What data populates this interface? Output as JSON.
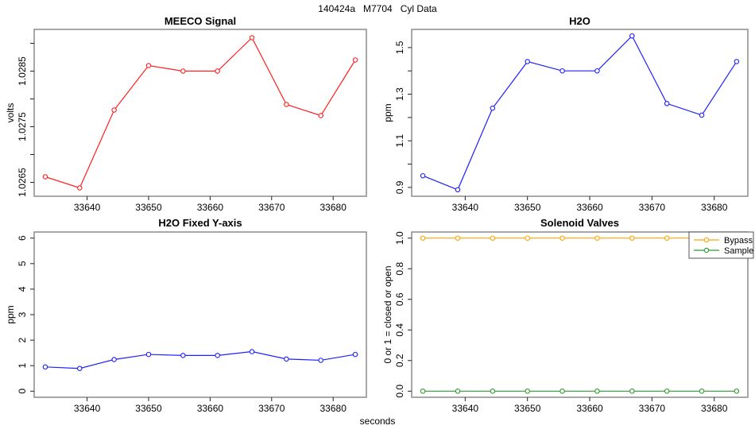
{
  "header": {
    "title": "140424a   M7704   Cyl Data"
  },
  "footer": {
    "xlabel": "seconds"
  },
  "colors": {
    "box": "#8c8c8c",
    "tick": "#222222",
    "red": "#ff2020",
    "blue": "#2020ff",
    "orange": "#ffa500",
    "green": "#2e9b2e",
    "legend_border": "#555555"
  },
  "chart_data": [
    {
      "type": "line",
      "title": "MEECO Signal",
      "ylabel": "volts",
      "x": [
        33633.2,
        33638.8,
        33644.4,
        33650.0,
        33655.6,
        33661.2,
        33666.8,
        33672.4,
        33678.0,
        33683.6
      ],
      "series": [
        {
          "name": "MEECO Signal",
          "color": "#ff2020",
          "values": [
            1.0266,
            1.0264,
            1.0278,
            1.0286,
            1.0285,
            1.0285,
            1.0291,
            1.0279,
            1.0277,
            1.0287
          ]
        }
      ],
      "xlim": [
        33631.4,
        33685.4
      ],
      "ylim": [
        1.02625,
        1.02925
      ],
      "xticks": {
        "values": [
          33640,
          33650,
          33660,
          33670,
          33680
        ],
        "labels": [
          "33640",
          "33650",
          "33660",
          "33670",
          "33680"
        ]
      },
      "yticks": {
        "values": [
          1.0265,
          1.027,
          1.0275,
          1.028,
          1.0285,
          1.029
        ],
        "labels": [
          "1.0265",
          "",
          "1.0275",
          "",
          "1.0285",
          ""
        ]
      },
      "grid": false
    },
    {
      "type": "line",
      "title": "H2O",
      "ylabel": "ppm",
      "x": [
        33633.2,
        33638.8,
        33644.4,
        33650.0,
        33655.6,
        33661.2,
        33666.8,
        33672.4,
        33678.0,
        33683.6
      ],
      "series": [
        {
          "name": "H2O",
          "color": "#2020ff",
          "values": [
            0.95,
            0.89,
            1.24,
            1.44,
            1.4,
            1.4,
            1.55,
            1.26,
            1.21,
            1.44
          ]
        }
      ],
      "xlim": [
        33631.4,
        33685.4
      ],
      "ylim": [
        0.862,
        1.578
      ],
      "xticks": {
        "values": [
          33640,
          33650,
          33660,
          33670,
          33680
        ],
        "labels": [
          "33640",
          "33650",
          "33660",
          "33670",
          "33680"
        ]
      },
      "yticks": {
        "values": [
          0.9,
          1.0,
          1.1,
          1.2,
          1.3,
          1.4,
          1.5
        ],
        "labels": [
          "0.9",
          "",
          "1.1",
          "",
          "1.3",
          "",
          "1.5"
        ]
      },
      "grid": false
    },
    {
      "type": "line",
      "title": "H2O Fixed Y-axis",
      "ylabel": "ppm",
      "x": [
        33633.2,
        33638.8,
        33644.4,
        33650.0,
        33655.6,
        33661.2,
        33666.8,
        33672.4,
        33678.0,
        33683.6
      ],
      "series": [
        {
          "name": "H2O",
          "color": "#2020ff",
          "values": [
            0.95,
            0.89,
            1.24,
            1.44,
            1.4,
            1.4,
            1.55,
            1.26,
            1.21,
            1.44
          ]
        }
      ],
      "xlim": [
        33631.4,
        33685.4
      ],
      "ylim": [
        -0.24,
        6.24
      ],
      "xticks": {
        "values": [
          33640,
          33650,
          33660,
          33670,
          33680
        ],
        "labels": [
          "33640",
          "33650",
          "33660",
          "33670",
          "33680"
        ]
      },
      "yticks": {
        "values": [
          0,
          1,
          2,
          3,
          4,
          5,
          6
        ],
        "labels": [
          "0",
          "1",
          "2",
          "3",
          "4",
          "5",
          "6"
        ]
      },
      "grid": false
    },
    {
      "type": "line",
      "title": "Solenoid Valves",
      "ylabel": "0 or 1 = closed or open",
      "x": [
        33633.2,
        33638.8,
        33644.4,
        33650.0,
        33655.6,
        33661.2,
        33666.8,
        33672.4,
        33678.0,
        33683.6
      ],
      "series": [
        {
          "name": "Bypass",
          "color": "#ffa500",
          "values": [
            1,
            1,
            1,
            1,
            1,
            1,
            1,
            1,
            1,
            1
          ]
        },
        {
          "name": "Sample",
          "color": "#2e9b2e",
          "values": [
            0,
            0,
            0,
            0,
            0,
            0,
            0,
            0,
            0,
            0
          ]
        }
      ],
      "xlim": [
        33631.4,
        33685.4
      ],
      "ylim": [
        -0.04,
        1.04
      ],
      "xticks": {
        "values": [
          33640,
          33650,
          33660,
          33670,
          33680
        ],
        "labels": [
          "33640",
          "33650",
          "33660",
          "33670",
          "33680"
        ]
      },
      "yticks": {
        "values": [
          0,
          0.2,
          0.4,
          0.6,
          0.8,
          1.0
        ],
        "labels": [
          "0.0",
          "0.2",
          "0.4",
          "0.6",
          "0.8",
          "1.0"
        ]
      },
      "legend": {
        "position": "top-right",
        "entries": [
          "Bypass",
          "Sample"
        ]
      },
      "grid": false
    }
  ]
}
